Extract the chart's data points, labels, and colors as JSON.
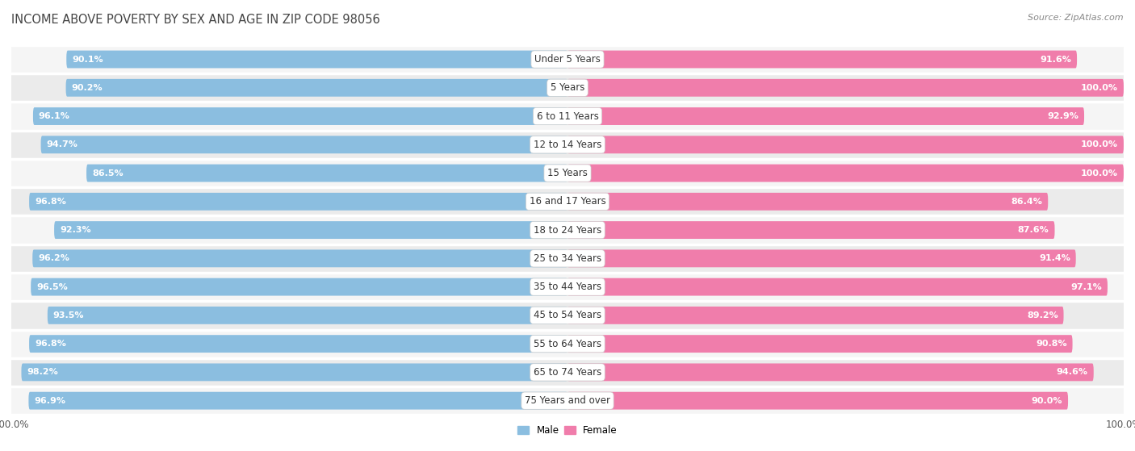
{
  "title": "INCOME ABOVE POVERTY BY SEX AND AGE IN ZIP CODE 98056",
  "source": "Source: ZipAtlas.com",
  "categories": [
    "Under 5 Years",
    "5 Years",
    "6 to 11 Years",
    "12 to 14 Years",
    "15 Years",
    "16 and 17 Years",
    "18 to 24 Years",
    "25 to 34 Years",
    "35 to 44 Years",
    "45 to 54 Years",
    "55 to 64 Years",
    "65 to 74 Years",
    "75 Years and over"
  ],
  "male_values": [
    90.1,
    90.2,
    96.1,
    94.7,
    86.5,
    96.8,
    92.3,
    96.2,
    96.5,
    93.5,
    96.8,
    98.2,
    96.9
  ],
  "female_values": [
    91.6,
    100.0,
    92.9,
    100.0,
    100.0,
    86.4,
    87.6,
    91.4,
    97.1,
    89.2,
    90.8,
    94.6,
    90.0
  ],
  "male_color": "#8bbee0",
  "female_color": "#f07dab",
  "male_label": "Male",
  "female_label": "Female",
  "bg_color": "#ffffff",
  "row_color_odd": "#ebebeb",
  "row_color_even": "#f5f5f5",
  "row_sep_color": "#ffffff",
  "max_value": 100.0,
  "title_fontsize": 10.5,
  "label_fontsize": 8.5,
  "value_fontsize": 8,
  "source_fontsize": 8
}
